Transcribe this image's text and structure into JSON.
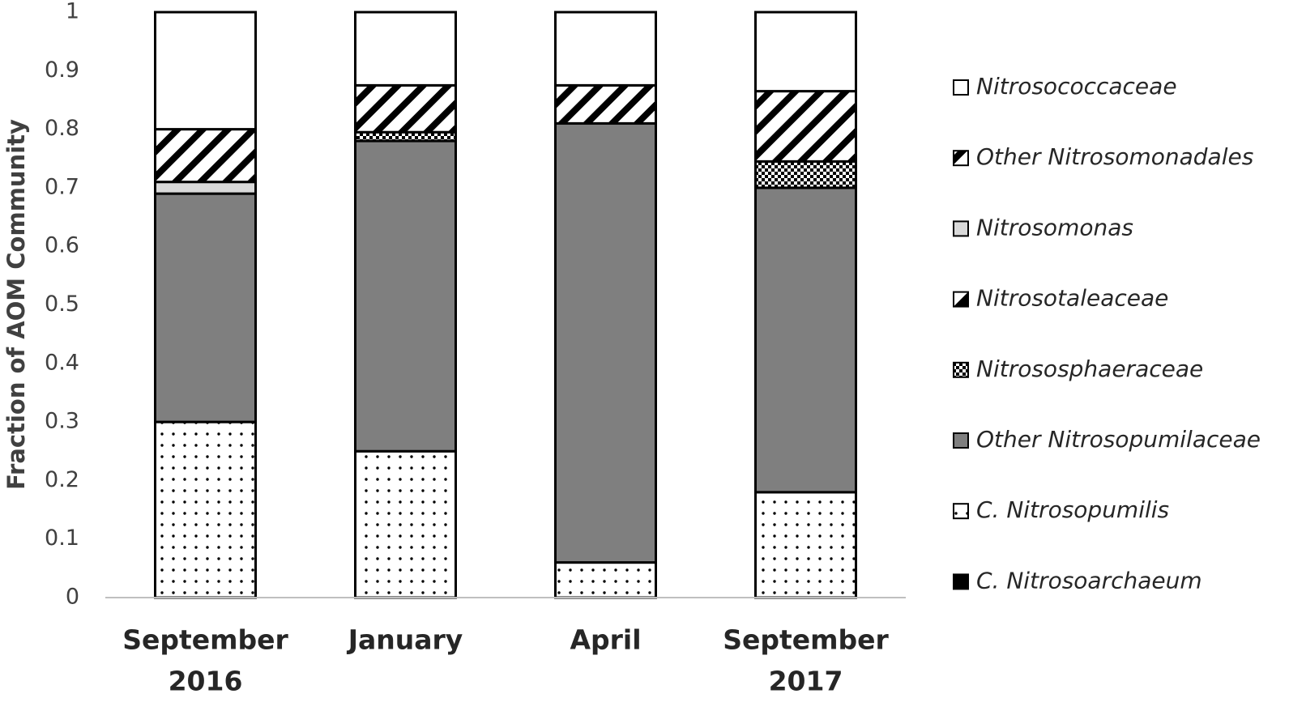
{
  "chart_data": {
    "type": "stacked_bar",
    "y_label": "Fraction of AOM Community",
    "categories": [
      [
        "September",
        "2016"
      ],
      [
        "January"
      ],
      [
        "April"
      ],
      [
        "September",
        "2017"
      ]
    ],
    "ylim": [
      0,
      1
    ],
    "yticks": [
      0,
      0.1,
      0.2,
      0.3,
      0.4,
      0.5,
      0.6,
      0.7,
      0.8,
      0.9,
      1
    ],
    "grid": false,
    "legend": "right",
    "series": [
      {
        "name": "C. Nitrosoarchaeum",
        "color": "#000000",
        "values": [
          0,
          0,
          0,
          0
        ]
      },
      {
        "name": "C. Nitrosopumilis",
        "color": "#ffffff",
        "pattern": "dots",
        "values": [
          0.3,
          0.25,
          0.06,
          0.18
        ]
      },
      {
        "name": "Other Nitrosopumilaceae",
        "color": "#7f7f7f",
        "values": [
          0.39,
          0.53,
          0.75,
          0.52
        ]
      },
      {
        "name": "Nitrososphaeraceae",
        "color": "#ffffff",
        "pattern": "checker",
        "values": [
          0,
          0.015,
          0,
          0.045
        ]
      },
      {
        "name": "Nitrosotaleaceae",
        "color": "#ffffff",
        "pattern": "half",
        "values": [
          0,
          0,
          0,
          0
        ]
      },
      {
        "name": "Nitrosomonas",
        "color": "#d9d9d9",
        "values": [
          0.02,
          0,
          0,
          0
        ]
      },
      {
        "name": "Other Nitrosomonadales",
        "color": "#ffffff",
        "pattern": "hatch",
        "values": [
          0.09,
          0.08,
          0.065,
          0.12
        ]
      },
      {
        "name": "Nitrosococcaceae",
        "color": "#ffffff",
        "values": [
          0.2,
          0.125,
          0.125,
          0.135
        ]
      }
    ]
  }
}
